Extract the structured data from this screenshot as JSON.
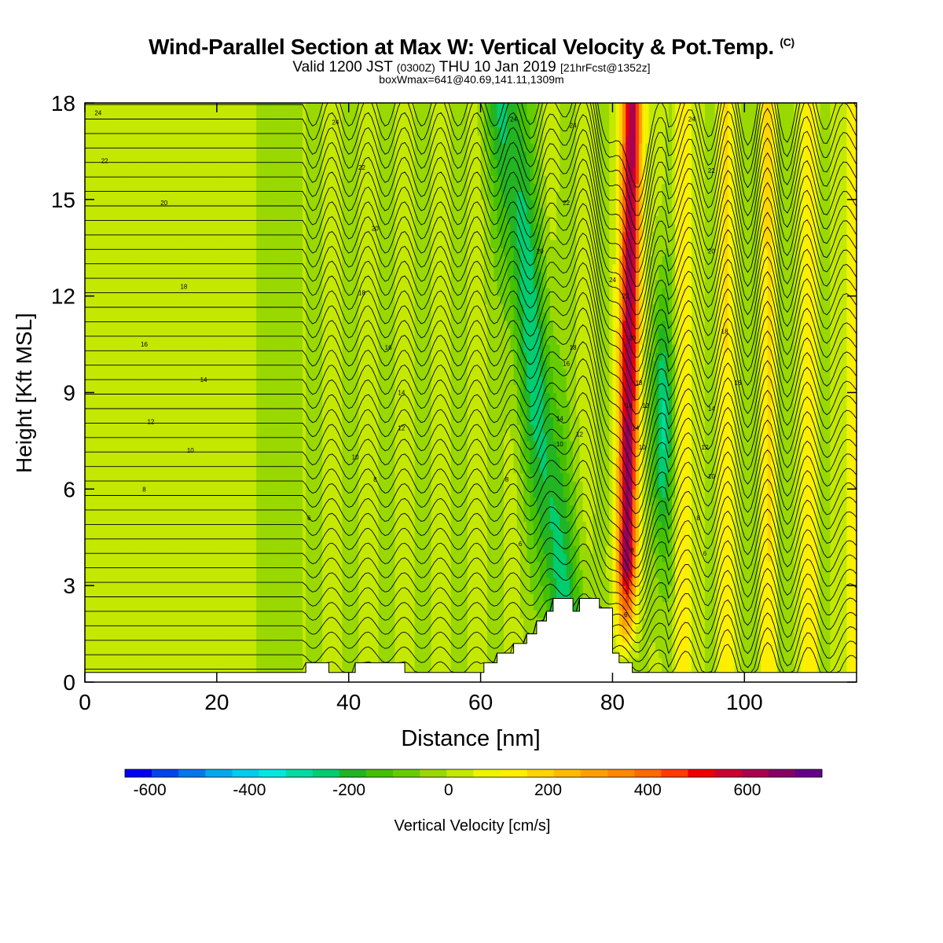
{
  "header": {
    "title": "Wind-Parallel Section at Max W: Vertical Velocity & Pot.Temp.",
    "copyright_mark": "(C)",
    "valid_prefix": "Valid 1200 JST",
    "valid_utc": "(0300Z)",
    "valid_date": "THU 10 Jan 2019",
    "forecast_info": "[21hrFcst@1352z]",
    "box_info": "boxWmax=641@40.69,141.11,1309m"
  },
  "chart_data": {
    "type": "heatmap",
    "title": "Wind-Parallel Section at Max W: Vertical Velocity & Pot.Temp.",
    "xlabel": "Distance [nm]",
    "ylabel": "Height [Kft MSL]",
    "xlim": [
      0,
      117
    ],
    "ylim": [
      0,
      18
    ],
    "x_ticks": [
      "0",
      "20",
      "40",
      "60",
      "80",
      "100"
    ],
    "x_tick_values": [
      0,
      20,
      40,
      60,
      80,
      100
    ],
    "y_ticks": [
      "0",
      "3",
      "6",
      "9",
      "12",
      "15",
      "18"
    ],
    "y_tick_values": [
      0,
      3,
      6,
      9,
      12,
      15,
      18
    ],
    "colorbar": {
      "label": "Vertical Velocity [cm/s]",
      "tick_labels": [
        "-600",
        "-400",
        "-200",
        "0",
        "200",
        "400",
        "600"
      ],
      "tick_values": [
        -600,
        -400,
        -200,
        0,
        200,
        400,
        600
      ],
      "range": [
        -650,
        750
      ],
      "colors": [
        "#0000ee",
        "#0044ee",
        "#0077ee",
        "#00a8ee",
        "#00ccee",
        "#00e8e0",
        "#00dca0",
        "#00cc70",
        "#22b422",
        "#44c000",
        "#66cc00",
        "#99d800",
        "#c4e800",
        "#eef400",
        "#ffee00",
        "#ffd400",
        "#ffbb00",
        "#ffa000",
        "#ff8800",
        "#ff6a00",
        "#ff3c00",
        "#ee0000",
        "#cc0030",
        "#aa0050",
        "#880066",
        "#660088"
      ]
    },
    "terrain": [
      [
        0,
        0.3
      ],
      [
        33.5,
        0.3
      ],
      [
        33.5,
        0.6
      ],
      [
        37,
        0.6
      ],
      [
        37,
        0.3
      ],
      [
        41,
        0.3
      ],
      [
        41,
        0.6
      ],
      [
        48.5,
        0.6
      ],
      [
        48.5,
        0.3
      ],
      [
        60.5,
        0.3
      ],
      [
        60.5,
        0.6
      ],
      [
        62.5,
        0.6
      ],
      [
        62.5,
        0.9
      ],
      [
        65,
        0.9
      ],
      [
        65,
        1.2
      ],
      [
        67,
        1.2
      ],
      [
        67,
        1.5
      ],
      [
        68.5,
        1.5
      ],
      [
        68.5,
        1.9
      ],
      [
        70,
        1.9
      ],
      [
        70,
        2.2
      ],
      [
        71,
        2.2
      ],
      [
        71,
        2.6
      ],
      [
        74,
        2.6
      ],
      [
        74,
        2.2
      ],
      [
        75,
        2.2
      ],
      [
        75,
        2.6
      ],
      [
        78,
        2.6
      ],
      [
        78,
        2.3
      ],
      [
        80,
        2.3
      ],
      [
        80,
        0.9
      ],
      [
        81,
        0.9
      ],
      [
        81,
        0.6
      ],
      [
        83,
        0.6
      ],
      [
        83,
        0.3
      ],
      [
        117,
        0.3
      ]
    ],
    "updraft_core": {
      "x_at_base": 82,
      "x_at_top": 83,
      "max_w": 641
    },
    "theta_contour_labels": [
      {
        "text": "24",
        "x": 2,
        "y": 17.7
      },
      {
        "text": "22",
        "x": 3,
        "y": 16.2
      },
      {
        "text": "20",
        "x": 12,
        "y": 14.9
      },
      {
        "text": "18",
        "x": 15,
        "y": 12.3
      },
      {
        "text": "16",
        "x": 9,
        "y": 10.5
      },
      {
        "text": "14",
        "x": 18,
        "y": 9.4
      },
      {
        "text": "12",
        "x": 10,
        "y": 8.1
      },
      {
        "text": "10",
        "x": 16,
        "y": 7.2
      },
      {
        "text": "8",
        "x": 9,
        "y": 6.0
      },
      {
        "text": "6",
        "x": 34,
        "y": 5.1
      },
      {
        "text": "24",
        "x": 38,
        "y": 17.4
      },
      {
        "text": "22",
        "x": 42,
        "y": 16.0
      },
      {
        "text": "20",
        "x": 44,
        "y": 14.1
      },
      {
        "text": "18",
        "x": 42,
        "y": 12.1
      },
      {
        "text": "16",
        "x": 46,
        "y": 10.4
      },
      {
        "text": "14",
        "x": 48,
        "y": 9.0
      },
      {
        "text": "12",
        "x": 48,
        "y": 7.9
      },
      {
        "text": "10",
        "x": 41,
        "y": 7.0
      },
      {
        "text": "8",
        "x": 44,
        "y": 6.3
      },
      {
        "text": "24",
        "x": 65,
        "y": 17.5
      },
      {
        "text": "22",
        "x": 73,
        "y": 14.9
      },
      {
        "text": "20",
        "x": 69,
        "y": 13.4
      },
      {
        "text": "24",
        "x": 80,
        "y": 12.5
      },
      {
        "text": "22",
        "x": 82,
        "y": 12.0
      },
      {
        "text": "8",
        "x": 64,
        "y": 6.3
      },
      {
        "text": "6",
        "x": 66,
        "y": 4.3
      },
      {
        "text": "18",
        "x": 74,
        "y": 10.4
      },
      {
        "text": "16",
        "x": 73,
        "y": 9.9
      },
      {
        "text": "14",
        "x": 72,
        "y": 8.2
      },
      {
        "text": "12",
        "x": 75,
        "y": 7.7
      },
      {
        "text": "10",
        "x": 72,
        "y": 7.4
      },
      {
        "text": "24",
        "x": 74,
        "y": 17.3
      },
      {
        "text": "20",
        "x": 83,
        "y": 10.7
      },
      {
        "text": "18",
        "x": 84,
        "y": 9.3
      },
      {
        "text": "16",
        "x": 82.5,
        "y": 8.6
      },
      {
        "text": "14",
        "x": 83.5,
        "y": 7.9
      },
      {
        "text": "12",
        "x": 85,
        "y": 8.6
      },
      {
        "text": "10",
        "x": 84.5,
        "y": 7.3
      },
      {
        "text": "8",
        "x": 83,
        "y": 4.1
      },
      {
        "text": "6",
        "x": 82,
        "y": 2.1
      },
      {
        "text": "24",
        "x": 92,
        "y": 17.5
      },
      {
        "text": "22",
        "x": 95,
        "y": 15.9
      },
      {
        "text": "20",
        "x": 95,
        "y": 13.4
      },
      {
        "text": "18",
        "x": 97,
        "y": 10.9
      },
      {
        "text": "16",
        "x": 99,
        "y": 9.3
      },
      {
        "text": "14",
        "x": 95,
        "y": 8.5
      },
      {
        "text": "12",
        "x": 94,
        "y": 7.3
      },
      {
        "text": "10",
        "x": 95,
        "y": 6.4
      },
      {
        "text": "8",
        "x": 93,
        "y": 5.1
      },
      {
        "text": "6",
        "x": 94,
        "y": 4.0
      }
    ]
  }
}
